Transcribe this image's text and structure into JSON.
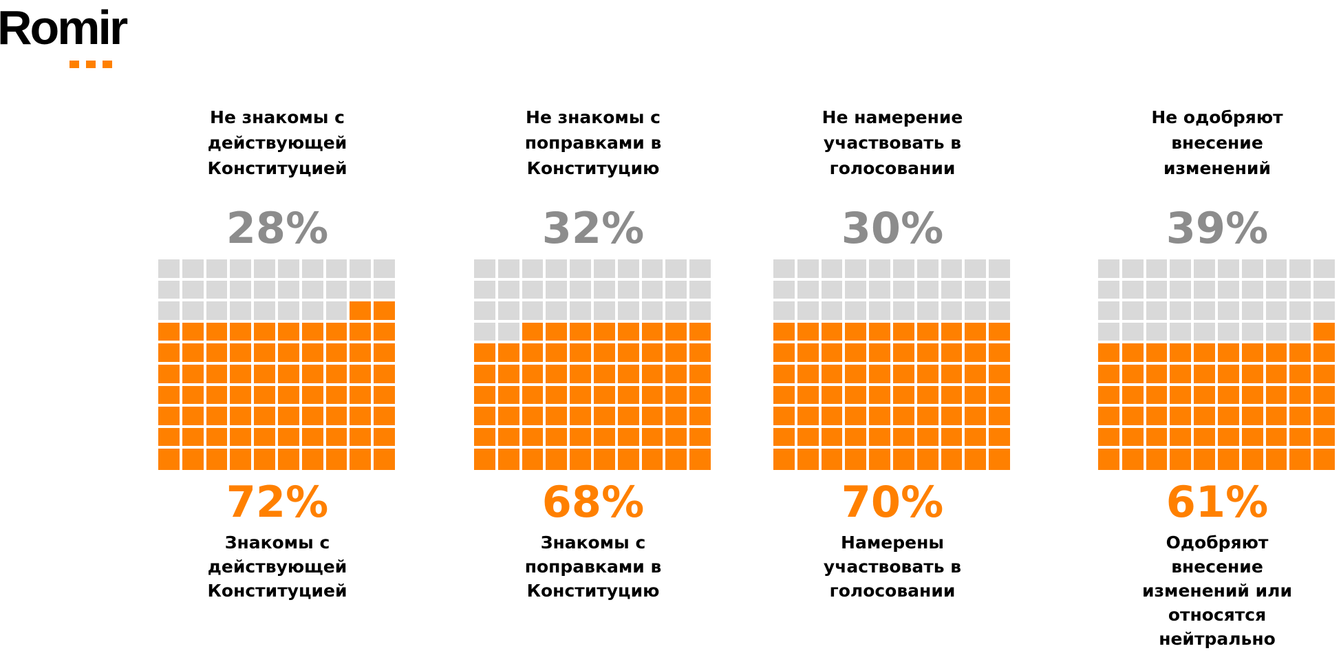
{
  "logo": {
    "text": "Romir"
  },
  "colors": {
    "accent": "#ff8000",
    "grey_cell": "#d9d9d9",
    "grey_text": "#8c8c8c"
  },
  "chart_data": {
    "type": "waffle",
    "grid": "10x10",
    "panels": [
      {
        "top_label": "Не знакомы с действующей Конституцией",
        "top_value": 28,
        "top_text": "28%",
        "bottom_value": 72,
        "bottom_text": "72%",
        "bottom_label": "Знакомы с действующей Конституцией"
      },
      {
        "top_label": "Не знакомы с поправками в Конституцию",
        "top_value": 32,
        "top_text": "32%",
        "bottom_value": 68,
        "bottom_text": "68%",
        "bottom_label": "Знакомы с поправками в Конституцию"
      },
      {
        "top_label": "Не намерение участвовать в голосовании",
        "top_value": 30,
        "top_text": "30%",
        "bottom_value": 70,
        "bottom_text": "70%",
        "bottom_label": "Намерены участвовать в голосовании"
      },
      {
        "top_label": "Не одобряют внесение изменений",
        "top_value": 39,
        "top_text": "39%",
        "bottom_value": 61,
        "bottom_text": "61%",
        "bottom_label": "Одобряют внесение изменений или относятся нейтрально"
      }
    ]
  }
}
